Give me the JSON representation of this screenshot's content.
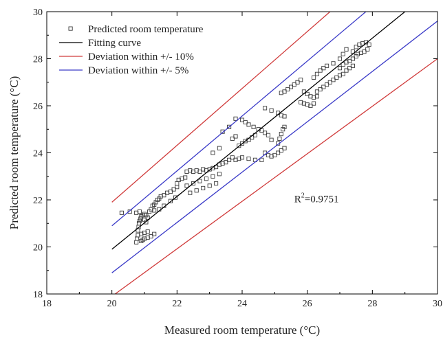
{
  "chart_data": {
    "type": "scatter",
    "xlabel": "Measured room temperature (°C)",
    "ylabel": "Predicted room temperature (°C)",
    "xlim": [
      18,
      30
    ],
    "ylim": [
      18,
      30
    ],
    "x_ticks": [
      18,
      20,
      22,
      24,
      26,
      28,
      30
    ],
    "y_ticks": [
      18,
      20,
      22,
      24,
      26,
      28,
      30
    ],
    "grid": false,
    "legend_position": "top-left",
    "annotation": {
      "base": "R",
      "sup": "2",
      "value": "=0.9751"
    },
    "colors": {
      "points": "#3a3a3a",
      "fit": "#000000",
      "dev10": "#d03a3a",
      "dev5": "#3a3ac8"
    },
    "series": [
      {
        "name": "Predicted room temperature",
        "kind": "points",
        "marker": "open-square",
        "color": "#3a3a3a",
        "points": [
          [
            20.3,
            21.45
          ],
          [
            20.55,
            21.5
          ],
          [
            20.75,
            21.45
          ],
          [
            20.85,
            21.5
          ],
          [
            20.75,
            20.2
          ],
          [
            20.77,
            20.35
          ],
          [
            20.8,
            20.5
          ],
          [
            20.8,
            20.7
          ],
          [
            20.82,
            20.85
          ],
          [
            20.83,
            21.0
          ],
          [
            20.85,
            21.1
          ],
          [
            20.88,
            21.2
          ],
          [
            20.9,
            21.3
          ],
          [
            20.95,
            21.35
          ],
          [
            21.0,
            21.4
          ],
          [
            21.05,
            21.35
          ],
          [
            21.0,
            21.15
          ],
          [
            21.05,
            21.05
          ],
          [
            20.9,
            20.25
          ],
          [
            20.95,
            20.3
          ],
          [
            21.0,
            20.35
          ],
          [
            21.1,
            20.4
          ],
          [
            21.2,
            20.45
          ],
          [
            21.3,
            20.55
          ],
          [
            20.9,
            20.55
          ],
          [
            21.0,
            20.6
          ],
          [
            21.1,
            20.65
          ],
          [
            21.1,
            21.25
          ],
          [
            21.15,
            21.5
          ],
          [
            21.2,
            21.6
          ],
          [
            21.25,
            21.75
          ],
          [
            21.3,
            21.8
          ],
          [
            21.35,
            21.9
          ],
          [
            21.4,
            22.0
          ],
          [
            21.45,
            22.05
          ],
          [
            21.5,
            22.15
          ],
          [
            21.6,
            22.2
          ],
          [
            21.7,
            22.3
          ],
          [
            21.8,
            22.35
          ],
          [
            21.9,
            22.45
          ],
          [
            22.0,
            22.55
          ],
          [
            21.3,
            21.55
          ],
          [
            21.45,
            21.6
          ],
          [
            21.6,
            21.75
          ],
          [
            21.8,
            21.95
          ],
          [
            21.95,
            22.1
          ],
          [
            22.0,
            22.7
          ],
          [
            22.05,
            22.85
          ],
          [
            22.15,
            22.9
          ],
          [
            22.25,
            22.95
          ],
          [
            22.3,
            23.2
          ],
          [
            22.4,
            23.25
          ],
          [
            22.5,
            23.2
          ],
          [
            22.6,
            23.25
          ],
          [
            22.7,
            23.2
          ],
          [
            22.8,
            23.3
          ],
          [
            22.9,
            23.25
          ],
          [
            23.0,
            23.3
          ],
          [
            23.1,
            23.35
          ],
          [
            23.2,
            23.4
          ],
          [
            23.3,
            23.5
          ],
          [
            23.4,
            23.55
          ],
          [
            23.5,
            23.6
          ],
          [
            23.6,
            23.7
          ],
          [
            23.7,
            23.8
          ],
          [
            22.3,
            22.6
          ],
          [
            22.5,
            22.7
          ],
          [
            22.7,
            22.8
          ],
          [
            22.9,
            22.9
          ],
          [
            23.1,
            23.0
          ],
          [
            23.3,
            23.1
          ],
          [
            22.4,
            22.3
          ],
          [
            22.6,
            22.4
          ],
          [
            22.8,
            22.5
          ],
          [
            23.0,
            22.6
          ],
          [
            23.2,
            22.7
          ],
          [
            23.1,
            24.0
          ],
          [
            23.3,
            24.2
          ],
          [
            23.7,
            24.6
          ],
          [
            23.8,
            24.7
          ],
          [
            23.9,
            24.3
          ],
          [
            24.0,
            24.4
          ],
          [
            24.1,
            24.5
          ],
          [
            24.2,
            24.55
          ],
          [
            24.3,
            24.65
          ],
          [
            24.4,
            24.75
          ],
          [
            23.8,
            23.7
          ],
          [
            23.9,
            23.75
          ],
          [
            24.0,
            23.8
          ],
          [
            24.2,
            23.75
          ],
          [
            24.4,
            23.7
          ],
          [
            24.6,
            23.7
          ],
          [
            23.8,
            25.45
          ],
          [
            24.0,
            25.4
          ],
          [
            24.1,
            25.3
          ],
          [
            24.2,
            25.2
          ],
          [
            24.35,
            25.1
          ],
          [
            24.5,
            25.0
          ],
          [
            24.6,
            24.95
          ],
          [
            24.7,
            24.85
          ],
          [
            24.8,
            24.75
          ],
          [
            24.9,
            24.55
          ],
          [
            23.4,
            24.9
          ],
          [
            23.6,
            25.1
          ],
          [
            24.7,
            24.0
          ],
          [
            24.8,
            23.9
          ],
          [
            24.9,
            23.85
          ],
          [
            25.0,
            23.9
          ],
          [
            25.1,
            24.0
          ],
          [
            25.2,
            24.1
          ],
          [
            25.3,
            24.2
          ],
          [
            25.1,
            24.4
          ],
          [
            25.15,
            24.6
          ],
          [
            25.2,
            24.8
          ],
          [
            25.25,
            25.0
          ],
          [
            25.3,
            25.1
          ],
          [
            24.7,
            25.9
          ],
          [
            24.9,
            25.8
          ],
          [
            25.1,
            25.7
          ],
          [
            25.2,
            25.6
          ],
          [
            25.3,
            25.55
          ],
          [
            25.2,
            26.55
          ],
          [
            25.3,
            26.6
          ],
          [
            25.4,
            26.7
          ],
          [
            25.5,
            26.8
          ],
          [
            25.6,
            26.9
          ],
          [
            25.7,
            27.0
          ],
          [
            25.8,
            27.1
          ],
          [
            25.9,
            26.6
          ],
          [
            26.0,
            26.5
          ],
          [
            26.1,
            26.4
          ],
          [
            26.2,
            26.35
          ],
          [
            26.3,
            26.4
          ],
          [
            25.8,
            26.15
          ],
          [
            25.9,
            26.1
          ],
          [
            26.0,
            26.05
          ],
          [
            26.1,
            26.0
          ],
          [
            26.2,
            26.1
          ],
          [
            26.3,
            26.6
          ],
          [
            26.4,
            26.7
          ],
          [
            26.5,
            26.8
          ],
          [
            26.6,
            26.9
          ],
          [
            26.7,
            27.0
          ],
          [
            26.8,
            27.1
          ],
          [
            26.9,
            27.2
          ],
          [
            27.0,
            27.3
          ],
          [
            27.1,
            27.35
          ],
          [
            27.2,
            27.5
          ],
          [
            27.3,
            27.6
          ],
          [
            27.4,
            27.7
          ],
          [
            26.2,
            27.2
          ],
          [
            26.3,
            27.35
          ],
          [
            26.4,
            27.5
          ],
          [
            26.5,
            27.6
          ],
          [
            26.6,
            27.7
          ],
          [
            26.8,
            27.8
          ],
          [
            27.0,
            28.0
          ],
          [
            27.1,
            28.2
          ],
          [
            27.2,
            28.4
          ],
          [
            27.0,
            27.6
          ],
          [
            27.1,
            27.75
          ],
          [
            27.2,
            27.85
          ],
          [
            27.3,
            27.9
          ],
          [
            27.4,
            28.0
          ],
          [
            27.5,
            28.1
          ],
          [
            27.5,
            28.5
          ],
          [
            27.6,
            28.6
          ],
          [
            27.7,
            28.65
          ],
          [
            27.8,
            28.7
          ],
          [
            27.9,
            28.6
          ],
          [
            27.4,
            28.3
          ],
          [
            27.55,
            28.2
          ],
          [
            27.65,
            28.25
          ],
          [
            27.75,
            28.3
          ],
          [
            27.85,
            28.4
          ]
        ]
      },
      {
        "name": "Fitting curve",
        "kind": "line",
        "color": "#000000",
        "x": [
          20.0,
          29.0
        ],
        "y": [
          19.9,
          30.0
        ]
      },
      {
        "name": "Deviation within +/- 10%",
        "kind": "line",
        "color": "#d03a3a",
        "x": [
          20.0,
          26.7
        ],
        "y": [
          21.9,
          30.0
        ]
      },
      {
        "name": "Deviation within +/- 10%",
        "kind": "line",
        "color": "#d03a3a",
        "x": [
          20.1,
          30.0
        ],
        "y": [
          18.0,
          28.0
        ],
        "legend": false
      },
      {
        "name": "Deviation within +/- 5%",
        "kind": "line",
        "color": "#3a3ac8",
        "x": [
          20.0,
          27.8
        ],
        "y": [
          20.9,
          30.0
        ],
        "legend": false
      },
      {
        "name": "Deviation within +/- 5%",
        "kind": "line",
        "color": "#3a3ac8",
        "x": [
          20.0,
          30.0
        ],
        "y": [
          18.9,
          29.6
        ]
      }
    ],
    "legend": [
      {
        "label": "Predicted room temperature",
        "kind": "marker",
        "color": "#3a3a3a"
      },
      {
        "label": "Fitting curve",
        "kind": "line",
        "color": "#000000"
      },
      {
        "label": "Deviation within +/- 10%",
        "kind": "line",
        "color": "#d03a3a"
      },
      {
        "label": "Deviation within +/- 5%",
        "kind": "line",
        "color": "#3a3ac8"
      }
    ]
  }
}
